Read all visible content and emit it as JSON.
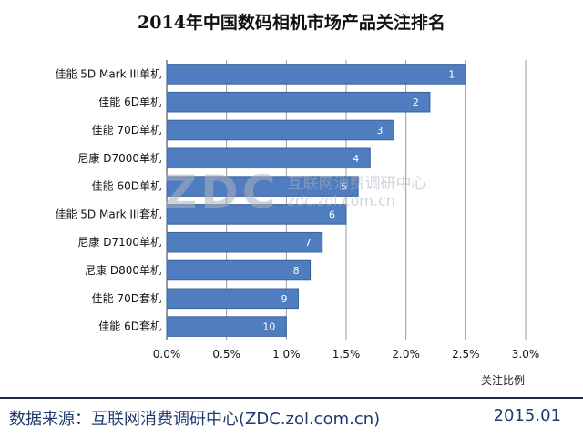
{
  "chart_data": {
    "type": "bar",
    "orientation": "horizontal",
    "title": "2014年中国数码相机市场产品关注排名",
    "categories": [
      "佳能 5D Mark III单机",
      "佳能 6D单机",
      "佳能 70D单机",
      "尼康 D7000单机",
      "佳能 60D单机",
      "佳能 5D Mark III套机",
      "尼康 D7100单机",
      "尼康 D800单机",
      "佳能 70D套机",
      "佳能 6D套机"
    ],
    "values": [
      2.5,
      2.2,
      1.9,
      1.7,
      1.6,
      1.5,
      1.3,
      1.2,
      1.1,
      1.0
    ],
    "rank_labels": [
      "1",
      "2",
      "3",
      "4",
      "5",
      "6",
      "7",
      "8",
      "9",
      "10"
    ],
    "xlabel": "关注比例",
    "xlim": [
      0,
      3.0
    ],
    "xticks": [
      0,
      0.5,
      1.0,
      1.5,
      2.0,
      2.5,
      3.0
    ],
    "xtick_labels": [
      "0.0%",
      "0.5%",
      "1.0%",
      "1.5%",
      "2.0%",
      "2.5%",
      "3.0%"
    ],
    "grid": "vertical",
    "bar_color": "#4f7dbf",
    "bar_edge_color": "#3a629c"
  },
  "watermark": {
    "logo": "ZDC",
    "name": "互联网消费调研中心",
    "url": "zdc.zol.com.cn"
  },
  "footer": {
    "source": "数据来源：互联网消费调研中心(ZDC.zol.com.cn)",
    "date": "2015.01"
  }
}
